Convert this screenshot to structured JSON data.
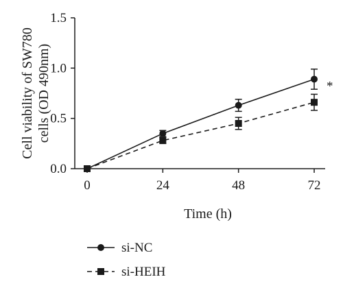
{
  "chart_data": {
    "type": "line",
    "xlabel": "Time (h)",
    "ylabel_lines": [
      "Cell viability of SW780",
      "cells (OD 490nm)"
    ],
    "x": [
      0,
      24,
      48,
      72
    ],
    "x_ticks": [
      "0",
      "24",
      "48",
      "72"
    ],
    "y_ticks": [
      "0.0",
      "0.5",
      "1.0",
      "1.5"
    ],
    "xlim": [
      0,
      72
    ],
    "ylim": [
      0,
      1.5
    ],
    "grid": false,
    "legend_position": "bottom-left",
    "series": [
      {
        "name": "si-NC",
        "values": [
          0,
          0.35,
          0.63,
          0.89
        ],
        "errors": [
          0,
          0.03,
          0.06,
          0.1
        ],
        "marker": "circle",
        "line_style": "solid",
        "color": "#1a1a1a"
      },
      {
        "name": "si-HEIH",
        "values": [
          0,
          0.28,
          0.45,
          0.66
        ],
        "errors": [
          0,
          0.03,
          0.06,
          0.08
        ],
        "marker": "square",
        "line_style": "dashed",
        "color": "#1a1a1a"
      }
    ],
    "annotations": [
      {
        "text": "*",
        "x": 72,
        "y": 0.82
      }
    ]
  }
}
